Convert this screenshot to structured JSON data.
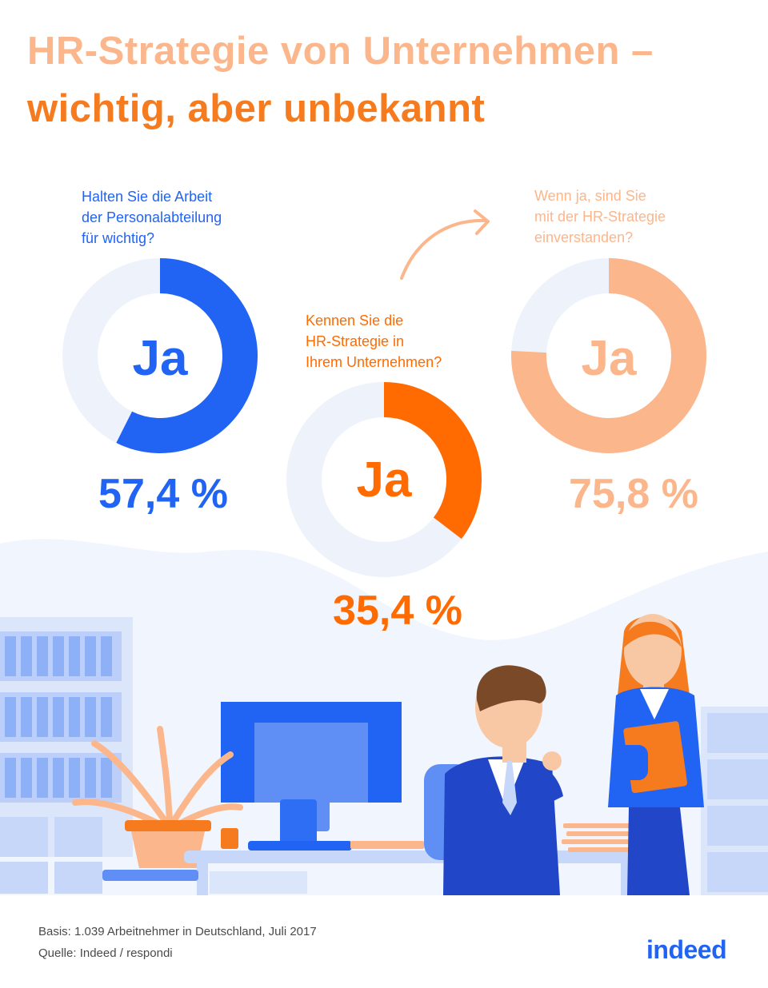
{
  "title": {
    "line1": "HR-Strategie von Unternehmen –",
    "line2": "wichtig, aber unbekannt"
  },
  "colors": {
    "blue": "#2164f3",
    "orange": "#ff6b00",
    "peach": "#fcb68b",
    "track": "#eef3fb",
    "title_dark": "#f57b1e"
  },
  "chart_data": {
    "type": "pie",
    "charts": [
      {
        "question": "Halten Sie die Arbeit\nder Personalabteilung\nfür wichtig?",
        "label": "Ja",
        "value": 57.4,
        "value_text": "57,4 %",
        "color": "#2164f3"
      },
      {
        "question": "Kennen Sie die\nHR-Strategie in\nIhrem Unternehmen?",
        "label": "Ja",
        "value": 35.4,
        "value_text": "35,4 %",
        "color": "#ff6b00"
      },
      {
        "question": "Wenn ja, sind Sie\nmit der HR-Strategie\neinverstanden?",
        "label": "Ja",
        "value": 75.8,
        "value_text": "75,8 %",
        "color": "#fcb68b"
      }
    ]
  },
  "footer": {
    "basis": "Basis: 1.039 Arbeitnehmer in Deutschland, Juli 2017",
    "quelle": "Quelle: Indeed / respondi"
  },
  "logo": "indeed",
  "icons": {
    "arrow": "curved-arrow-icon",
    "illustration": "office-illustration"
  }
}
